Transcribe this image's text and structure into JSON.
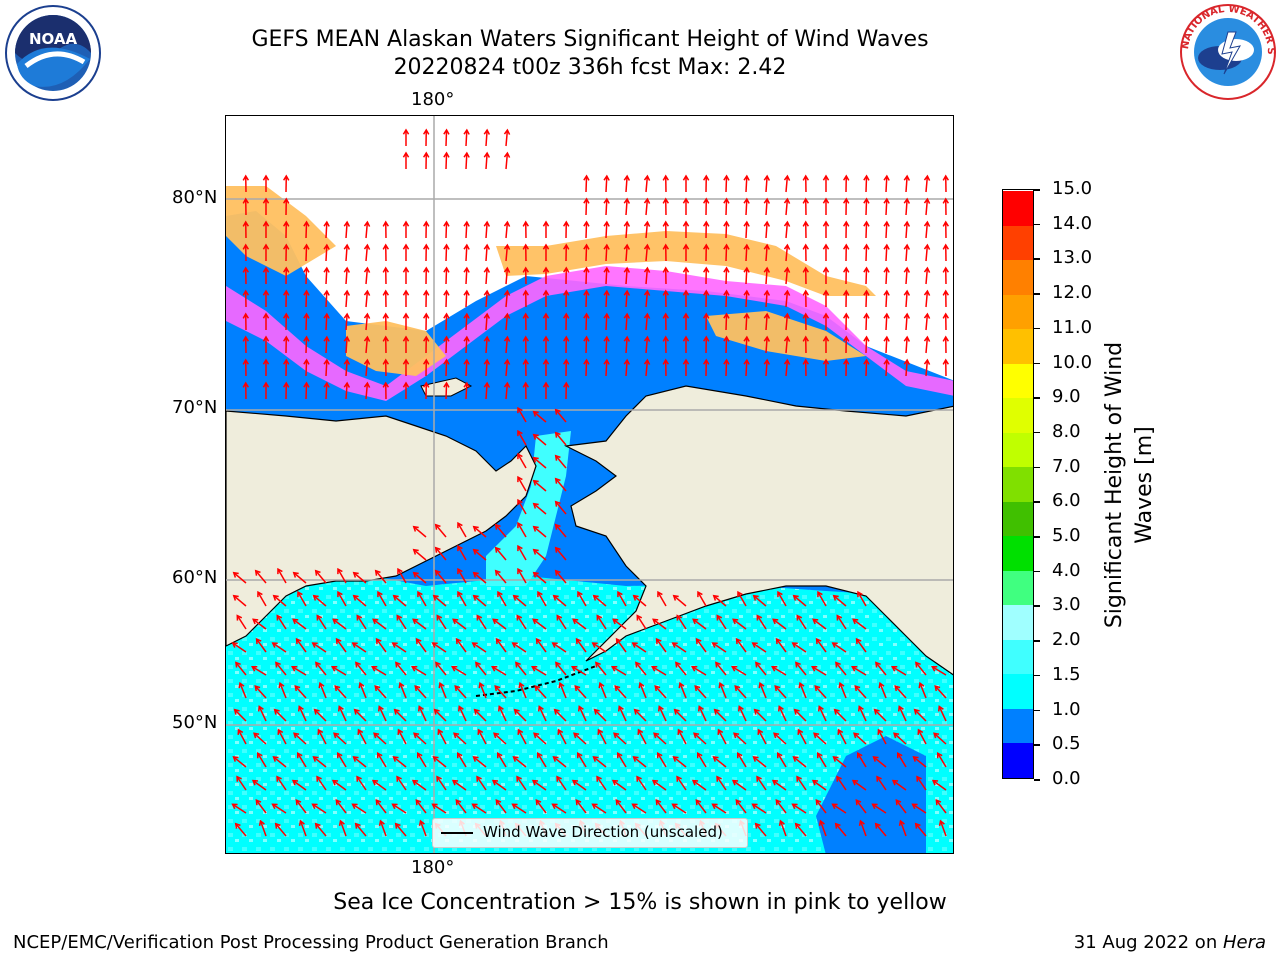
{
  "title_line1": "GEFS MEAN Alaskan Waters Significant Height of Wind Waves",
  "title_line2": "20220824 t00z 336h fcst   Max: 2.42",
  "lon_label_top": "180°",
  "lon_label_bottom": "180°",
  "lat_labels": [
    "80°N",
    "70°N",
    "60°N",
    "50°N"
  ],
  "colorbar": {
    "title_line1": "Significant Height of Wind",
    "title_line2": "Waves [m]",
    "ticks": [
      "0.0",
      "0.5",
      "1.0",
      "1.5",
      "2.0",
      "3.0",
      "4.0",
      "5.0",
      "6.0",
      "7.0",
      "8.0",
      "9.0",
      "10.0",
      "11.0",
      "12.0",
      "13.0",
      "14.0",
      "15.0"
    ],
    "colors": [
      "#0000ff",
      "#0080ff",
      "#00ffff",
      "#40ffff",
      "#a0ffff",
      "#40ff80",
      "#00e000",
      "#40c000",
      "#80e000",
      "#c0ff00",
      "#e0ff00",
      "#ffff00",
      "#ffc000",
      "#ffa000",
      "#ff8000",
      "#ff4000",
      "#ff0000"
    ]
  },
  "legend_text": "Wind Wave Direction (unscaled)",
  "sea_ice_note": "Sea Ice Concentration > 15% is shown in pink to yellow",
  "footer_left": "NCEP/EMC/Verification Post Processing Product Generation Branch",
  "footer_date": "31 Aug 2022 on ",
  "footer_machine": "Hera",
  "logos": {
    "left": "NOAA",
    "right": "NATIONAL WEATHER SERVICE"
  },
  "map_colors": {
    "land": "#efeddc",
    "water_mid": "#0080ff",
    "water_low": "#00ffff",
    "arrow": "#ff0000"
  }
}
